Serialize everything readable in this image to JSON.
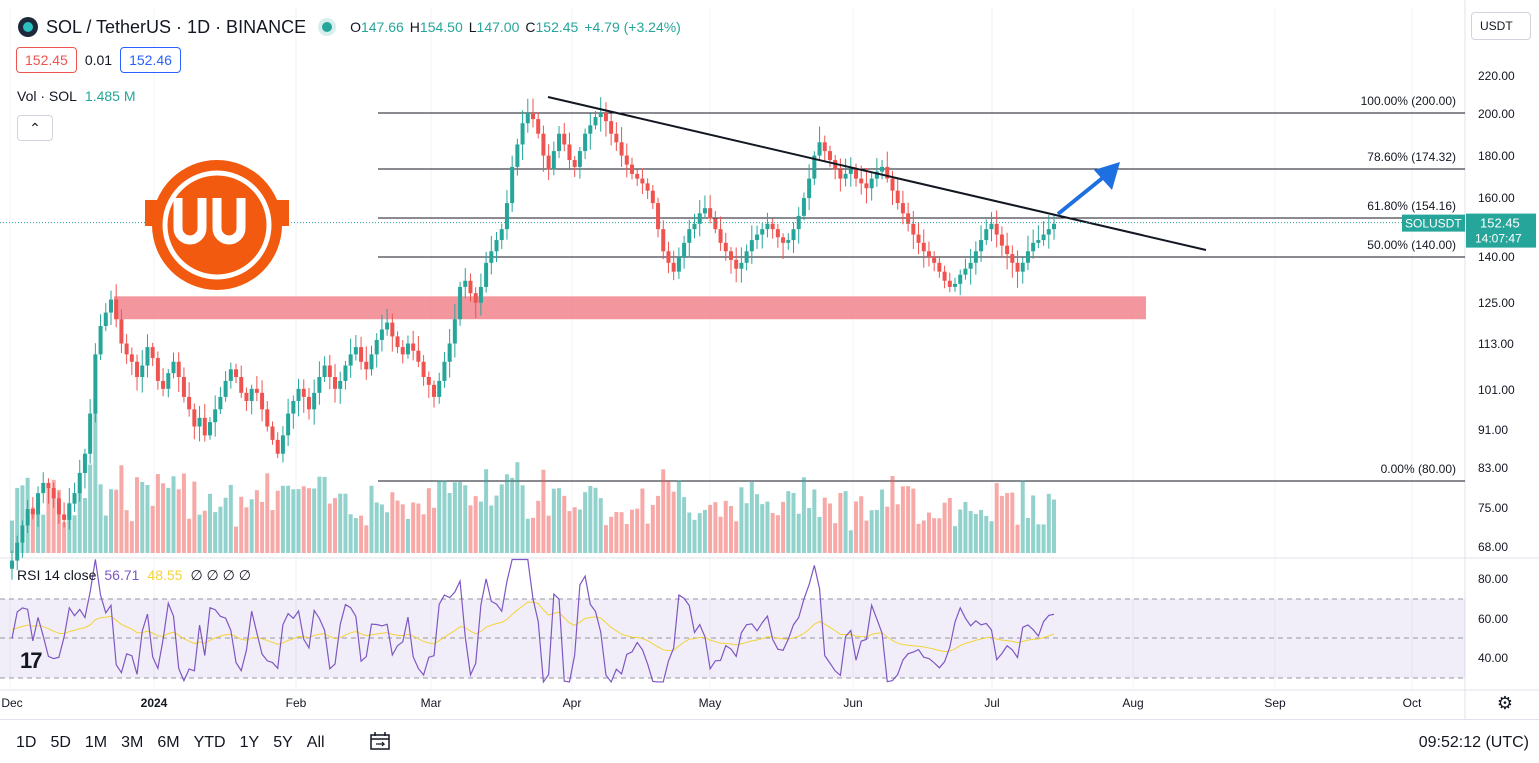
{
  "header": {
    "symbol": "SOL / TetherUS · 1D · BINANCE",
    "ohlc": [
      {
        "k": "O",
        "v": "147.66"
      },
      {
        "k": "H",
        "v": "154.50"
      },
      {
        "k": "L",
        "v": "147.00"
      },
      {
        "k": "C",
        "v": "152.45"
      },
      {
        "k": "",
        "v": "+4.79 (+3.24%)"
      }
    ],
    "sell_price": "152.45",
    "spread": "0.01",
    "buy_price": "152.46",
    "volume_label": "Vol · SOL",
    "volume_value": "1.485 M",
    "currency_select": "USDT"
  },
  "rsi": {
    "label": "RSI 14 close",
    "value": "56.71",
    "ma_value": "48.55",
    "extra": "∅ ∅ ∅ ∅"
  },
  "colors": {
    "up": "#26a69a",
    "down": "#ef5350",
    "support_zone": "#f28b92",
    "arrow": "#1e6fe0",
    "rsi": "#7e57c2",
    "rsi_ma": "#f3d33a",
    "logo": "#f15a0f"
  },
  "chart_data": {
    "type": "candlestick",
    "price_axis_labels": [
      "220.00",
      "200.00",
      "180.00",
      "160.00",
      "140.00",
      "125.00",
      "113.00",
      "101.00",
      "91.00",
      "83.00",
      "75.00",
      "68.00"
    ],
    "rsi_axis_labels": [
      "80.00",
      "60.00",
      "40.00"
    ],
    "time_labels": [
      "Dec",
      "2024",
      "Feb",
      "Mar",
      "Apr",
      "May",
      "Jun",
      "Jul",
      "Aug",
      "Sep",
      "Oct"
    ],
    "last_price": {
      "symbol": "SOLUSDT",
      "price": "152.45",
      "countdown": "14:07:47"
    },
    "fib_levels": [
      {
        "label": "100.00% (200.00)",
        "price": 200.0
      },
      {
        "label": "78.60% (174.32)",
        "price": 174.32
      },
      {
        "label": "61.80% (154.16)",
        "price": 154.16
      },
      {
        "label": "50.00% (140.00)",
        "price": 140.0
      },
      {
        "label": "0.00% (80.00)",
        "price": 80.0
      }
    ],
    "support_zone": [
      120,
      127
    ],
    "trendline": {
      "from": [
        "2024-03-26",
        209
      ],
      "to": [
        "2024-08-18",
        141
      ]
    },
    "closes": [
      66,
      69,
      72,
      75,
      74,
      78,
      80,
      79,
      77,
      74,
      73,
      76,
      78,
      82,
      86,
      95,
      110,
      118,
      122,
      126,
      120,
      113,
      110,
      108,
      104,
      107,
      112,
      109,
      103,
      101,
      105,
      108,
      104,
      99,
      96,
      92,
      94,
      90,
      93,
      96,
      99,
      103,
      106,
      104,
      100,
      98,
      101,
      100,
      96,
      92,
      89,
      86,
      90,
      95,
      98,
      101,
      99,
      96,
      100,
      104,
      107,
      104,
      101,
      103,
      107,
      110,
      112,
      108,
      106,
      110,
      114,
      117,
      119,
      115,
      112,
      110,
      113,
      111,
      108,
      104,
      102,
      99,
      103,
      108,
      113,
      120,
      130,
      132,
      128,
      125,
      130,
      138,
      142,
      146,
      150,
      160,
      175,
      185,
      195,
      200,
      197,
      190,
      180,
      174,
      182,
      190,
      185,
      178,
      175,
      182,
      190,
      194,
      198,
      200,
      196,
      190,
      186,
      180,
      176,
      172,
      170,
      168,
      165,
      160,
      150,
      142,
      138,
      135,
      140,
      145,
      150,
      152,
      156,
      158,
      154,
      150,
      145,
      142,
      139,
      136,
      138,
      142,
      146,
      148,
      150,
      152,
      150,
      147,
      145,
      146,
      150,
      155,
      162,
      170,
      180,
      186,
      182,
      178,
      174,
      170,
      172,
      174,
      170,
      168,
      166,
      170,
      173,
      175,
      170,
      165,
      160,
      156,
      152,
      148,
      145,
      142,
      140,
      138,
      135,
      132,
      130,
      131,
      134,
      136,
      138,
      142,
      146,
      150,
      152,
      148,
      144,
      141,
      138,
      135,
      138,
      142,
      145,
      146,
      148,
      150,
      152
    ]
  }
}
